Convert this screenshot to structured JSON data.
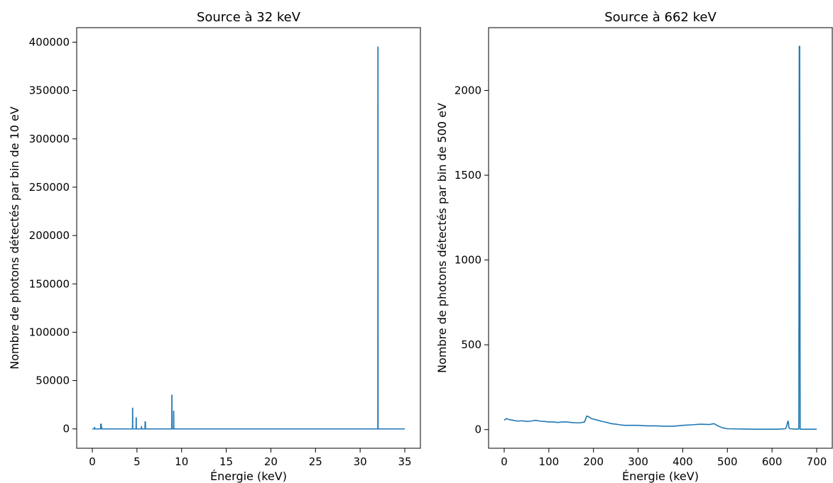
{
  "chart_data": [
    {
      "type": "line",
      "title": "Source à 32 keV",
      "xlabel": "Énergie (keV)",
      "ylabel": "Nombre de photons détectés par bin de 10 eV",
      "xlim": [
        -1.75,
        36.75
      ],
      "ylim": [
        -20000,
        415000
      ],
      "xticks": [
        0,
        5,
        10,
        15,
        20,
        25,
        30,
        35
      ],
      "xtick_labels": [
        "0",
        "5",
        "10",
        "15",
        "20",
        "25",
        "30",
        "35"
      ],
      "yticks": [
        0,
        50000,
        100000,
        150000,
        200000,
        250000,
        300000,
        350000,
        400000
      ],
      "ytick_labels": [
        "0",
        "50000",
        "100000",
        "150000",
        "200000",
        "250000",
        "300000",
        "350000",
        "400000"
      ],
      "grid": false,
      "series_color": "#1f77b4",
      "series": [
        {
          "x": [
            0.0,
            0.2,
            0.25,
            0.3,
            0.5,
            0.93,
            0.94,
            1.0,
            1.01,
            1.05,
            1.06,
            4.5,
            4.51,
            4.52,
            4.53,
            4.9,
            4.91,
            4.92,
            4.93,
            5.5,
            5.51,
            5.52,
            5.53,
            5.9,
            5.91,
            5.95,
            5.96,
            8.9,
            8.91,
            8.92,
            8.93,
            9.1,
            9.11,
            9.12,
            9.13,
            31.98,
            31.99,
            32.0,
            32.01,
            35.0
          ],
          "y": [
            0,
            0,
            1500,
            0,
            0,
            0,
            5000,
            4800,
            2000,
            1500,
            0,
            0,
            21500,
            21500,
            0,
            0,
            11500,
            11500,
            0,
            0,
            2500,
            2500,
            0,
            0,
            7500,
            7000,
            0,
            0,
            35000,
            35000,
            0,
            0,
            18500,
            18500,
            0,
            0,
            395000,
            395000,
            0,
            0
          ]
        }
      ]
    },
    {
      "type": "line",
      "title": "Source à 662 keV",
      "xlabel": "Énergie (keV)",
      "ylabel": "Nombre de photons détectés par bin de 500 eV",
      "xlim": [
        -35,
        735
      ],
      "ylim": [
        -110,
        2370
      ],
      "xticks": [
        0,
        100,
        200,
        300,
        400,
        500,
        600,
        700
      ],
      "xtick_labels": [
        "0",
        "100",
        "200",
        "300",
        "400",
        "500",
        "600",
        "700"
      ],
      "yticks": [
        0,
        500,
        1000,
        1500,
        2000
      ],
      "ytick_labels": [
        "0",
        "500",
        "1000",
        "1500",
        "2000"
      ],
      "grid": false,
      "series_color": "#1f77b4",
      "series": [
        {
          "x": [
            0,
            5,
            10,
            20,
            30,
            40,
            50,
            60,
            70,
            80,
            90,
            100,
            110,
            120,
            130,
            140,
            150,
            160,
            170,
            180,
            185,
            190,
            195,
            200,
            210,
            220,
            230,
            240,
            250,
            260,
            270,
            280,
            290,
            300,
            320,
            340,
            360,
            380,
            400,
            420,
            440,
            460,
            470,
            480,
            490,
            500,
            520,
            540,
            560,
            580,
            600,
            620,
            630,
            633,
            635,
            636,
            637,
            638,
            640,
            650,
            660,
            661,
            662,
            663,
            664,
            700
          ],
          "y": [
            55,
            65,
            60,
            55,
            50,
            52,
            48,
            50,
            55,
            50,
            48,
            45,
            45,
            42,
            45,
            45,
            42,
            40,
            40,
            45,
            80,
            75,
            65,
            62,
            55,
            48,
            42,
            35,
            32,
            28,
            25,
            25,
            25,
            25,
            22,
            22,
            20,
            20,
            25,
            28,
            32,
            30,
            35,
            20,
            10,
            5,
            4,
            3,
            2,
            2,
            2,
            3,
            5,
            20,
            45,
            50,
            35,
            10,
            5,
            3,
            3,
            2260,
            2260,
            5,
            2,
            2
          ]
        }
      ]
    }
  ]
}
